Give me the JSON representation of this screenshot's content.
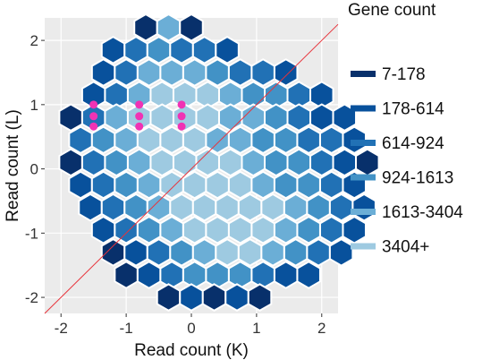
{
  "chart_data": {
    "type": "hexbin",
    "xlabel": "Read count (K)",
    "ylabel": "Read count (L)",
    "xlim": [
      -2.25,
      2.25
    ],
    "ylim": [
      -2.25,
      2.35
    ],
    "x_ticks": [
      -2,
      -1,
      0,
      1,
      2
    ],
    "x_tick_labels": [
      "-2",
      "-1",
      "0",
      "1",
      "2"
    ],
    "y_ticks": [
      -2,
      -1,
      0,
      1,
      2
    ],
    "y_tick_labels": [
      "-2",
      "-1",
      "0",
      "1",
      "2"
    ],
    "legend": {
      "title": "Gene count",
      "position": "right",
      "labels": [
        "7-178",
        "178-614",
        "614-924",
        "924-1613",
        "1613-3404",
        "3404+"
      ],
      "colors": [
        "#08306b",
        "#08519c",
        "#2171b5",
        "#4292c6",
        "#6baed6",
        "#9ecae1"
      ]
    },
    "hex_rows": [
      {
        "y": 2.2,
        "x_start": -0.7,
        "levels": [
          0,
          4,
          0
        ]
      },
      {
        "y": 1.85,
        "x_start": -1.2,
        "levels": [
          1,
          2,
          3,
          2,
          2,
          1
        ]
      },
      {
        "y": 1.5,
        "x_start": -1.35,
        "levels": [
          1,
          2,
          4,
          4,
          4,
          3,
          2,
          2,
          1
        ]
      },
      {
        "y": 1.15,
        "x_start": -1.5,
        "levels": [
          1,
          2,
          4,
          5,
          5,
          5,
          4,
          3,
          3,
          2,
          1
        ]
      },
      {
        "y": 0.8,
        "x_start": -1.85,
        "levels": [
          0,
          2,
          4,
          5,
          5,
          5,
          5,
          4,
          4,
          3,
          2,
          1,
          1
        ]
      },
      {
        "y": 0.45,
        "x_start": -1.7,
        "levels": [
          2,
          3,
          4,
          5,
          5,
          5,
          4,
          4,
          3,
          3,
          2,
          2,
          1
        ]
      },
      {
        "y": 0.1,
        "x_start": -1.85,
        "levels": [
          0,
          2,
          3,
          4,
          5,
          5,
          5,
          5,
          4,
          3,
          3,
          2,
          1,
          0
        ]
      },
      {
        "y": -0.25,
        "x_start": -1.7,
        "levels": [
          1,
          2,
          3,
          4,
          5,
          5,
          5,
          5,
          4,
          3,
          3,
          2,
          1
        ]
      },
      {
        "y": -0.6,
        "x_start": -1.55,
        "levels": [
          1,
          2,
          3,
          4,
          5,
          5,
          5,
          5,
          5,
          4,
          3,
          2,
          1
        ]
      },
      {
        "y": -0.95,
        "x_start": -1.35,
        "levels": [
          1,
          2,
          3,
          4,
          5,
          5,
          5,
          5,
          4,
          3,
          2,
          1
        ]
      },
      {
        "y": -1.3,
        "x_start": -1.2,
        "levels": [
          0,
          1,
          2,
          3,
          4,
          5,
          5,
          4,
          3,
          2,
          1
        ]
      },
      {
        "y": -1.65,
        "x_start": -1.0,
        "levels": [
          0,
          1,
          2,
          3,
          3,
          3,
          2,
          1,
          1
        ]
      },
      {
        "y": -2.0,
        "x_start": -0.35,
        "levels": [
          0,
          1,
          0,
          1,
          0
        ]
      }
    ],
    "highlight_points": {
      "color": "#f032b4",
      "x": [
        -1.5,
        -1.5,
        -1.5,
        -0.8,
        -0.8,
        -0.8,
        -0.15,
        -0.15,
        -0.15
      ],
      "y": [
        1.0,
        0.82,
        0.66,
        1.0,
        0.82,
        0.66,
        1.0,
        0.82,
        0.66
      ]
    },
    "reference_line": {
      "slope": 1,
      "intercept": 0,
      "color": "#e8333a"
    }
  }
}
